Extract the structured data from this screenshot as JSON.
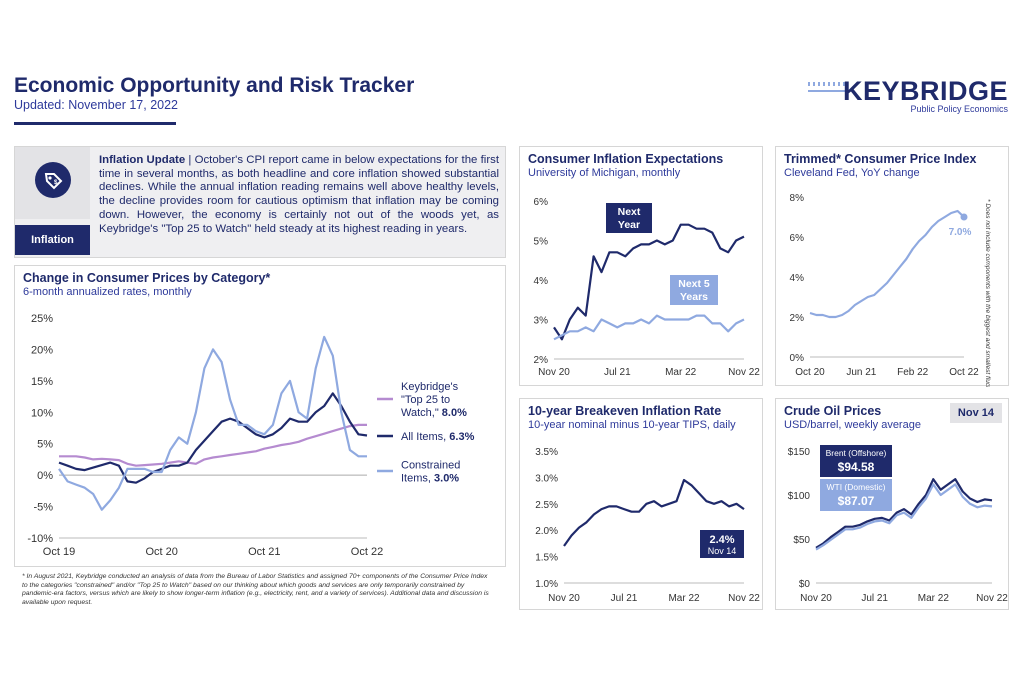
{
  "header": {
    "title": "Economic Opportunity and Risk Tracker",
    "updated": "Updated: November 17, 2022",
    "logo_word": "KEYBRIDGE",
    "logo_sub": "Public Policy Economics"
  },
  "inflation_update": {
    "label": "Inflation",
    "heading": "Inflation Update",
    "body": " | October's CPI report came in below expectations for the first time in several months, as both headline and core inflation showed substantial declines. While the annual inflation reading remains well above healthy levels, the decline provides room for cautious optimism that inflation may be coming down. However, the economy is certainly not out of the woods yet, as Keybridge's \"Top 25 to Watch\" held steady at its highest reading in years."
  },
  "footnote": "* In August 2021, Keybridge conducted an analysis of data from the Bureau of Labor Statistics and assigned 70+ components of the Consumer Price Index to the categories \"constrained\" and/or \"Top 25 to Watch\" based on our thinking about which goods and services are only temporarily constrained by pandemic-era factors, versus which are likely to show longer-term inflation (e.g., electricity, rent, and a variety of services). Additional data and discussion is available upon request.",
  "colors": {
    "navy": "#1f2a6b",
    "light_blue": "#8fa9e0",
    "purple": "#b58bd0",
    "zero_line": "#aaaaaa"
  },
  "chart_data": [
    {
      "id": "cpi-category",
      "type": "line",
      "title": "Change in Consumer Prices by Category*",
      "subtitle": "6-month annualized rates, monthly",
      "ylim": [
        -10,
        25
      ],
      "yticks": [
        "-10%",
        "-5%",
        "0%",
        "5%",
        "10%",
        "15%",
        "20%",
        "25%"
      ],
      "ytick_values": [
        -10,
        -5,
        0,
        5,
        10,
        15,
        20,
        25
      ],
      "xtick_labels": [
        "Oct 19",
        "Oct 20",
        "Oct 21",
        "Oct 22"
      ],
      "xtick_index": [
        0,
        12,
        24,
        36
      ],
      "series": [
        {
          "name": "Keybridge's \"Top 25 to Watch,\"",
          "value_label": "8.0%",
          "color": "#b58bd0",
          "values": [
            3,
            3,
            3,
            2.8,
            2.5,
            2.6,
            2.5,
            2.4,
            1.8,
            1.5,
            1.6,
            1.7,
            1.8,
            2,
            2.2,
            2,
            1.8,
            2.5,
            2.8,
            3,
            3.2,
            3.4,
            3.6,
            3.8,
            4.2,
            4.5,
            4.8,
            5,
            5.3,
            5.8,
            6.2,
            6.6,
            7,
            7.4,
            7.8,
            8,
            8
          ]
        },
        {
          "name": "All Items,",
          "value_label": "6.3%",
          "color": "#1f2a6b",
          "values": [
            2,
            1.5,
            1,
            0.8,
            1.2,
            1.6,
            2,
            1.5,
            -1,
            -1.2,
            -0.5,
            0.5,
            1,
            1.5,
            1.5,
            2,
            4,
            5.5,
            7,
            8.5,
            9,
            8.5,
            7.5,
            6.5,
            6,
            6.5,
            7.5,
            9,
            8.5,
            8.5,
            10,
            11,
            13,
            11,
            8.5,
            6.5,
            6.3
          ]
        },
        {
          "name": "Constrained Items,",
          "value_label": "3.0%",
          "color": "#8fa9e0",
          "values": [
            1,
            -1,
            -1.5,
            -2,
            -3,
            -5.5,
            -4,
            -2,
            1,
            1,
            1,
            0.5,
            0.5,
            4,
            6,
            5,
            10,
            17,
            20,
            18,
            12,
            8,
            8,
            7,
            6.5,
            8,
            13,
            15,
            10,
            9,
            17,
            22,
            19,
            10,
            4,
            3,
            3
          ]
        }
      ]
    },
    {
      "id": "inflation-expectations",
      "type": "line",
      "title": "Consumer Inflation Expectations",
      "subtitle": "University of Michigan, monthly",
      "ylim": [
        2,
        6
      ],
      "yticks": [
        "2%",
        "3%",
        "4%",
        "5%",
        "6%"
      ],
      "ytick_values": [
        2,
        3,
        4,
        5,
        6
      ],
      "xtick_labels": [
        "Nov 20",
        "Jul 21",
        "Mar 22",
        "Nov 22"
      ],
      "xtick_index": [
        0,
        8,
        16,
        24
      ],
      "series": [
        {
          "name": "Next Year",
          "color": "#1f2a6b",
          "values": [
            2.8,
            2.5,
            3.0,
            3.3,
            3.1,
            4.6,
            4.2,
            4.7,
            4.7,
            4.6,
            4.8,
            4.9,
            4.9,
            5.0,
            4.9,
            5.0,
            5.4,
            5.4,
            5.3,
            5.3,
            5.2,
            4.8,
            4.7,
            5.0,
            5.1
          ]
        },
        {
          "name": "Next 5 Years",
          "color": "#8fa9e0",
          "values": [
            2.5,
            2.6,
            2.7,
            2.7,
            2.8,
            2.7,
            3.0,
            2.9,
            2.8,
            2.9,
            2.9,
            3.0,
            2.9,
            3.1,
            3.0,
            3.0,
            3.0,
            3.0,
            3.1,
            3.1,
            2.9,
            2.9,
            2.7,
            2.9,
            3.0
          ]
        }
      ]
    },
    {
      "id": "trimmed-cpi",
      "type": "line",
      "title": "Trimmed* Consumer Price Index",
      "subtitle": "Cleveland Fed, YoY change",
      "note": "* Does not include components with the biggest and smallest fluctuations in prices each month",
      "ylim": [
        0,
        8
      ],
      "yticks": [
        "0%",
        "2%",
        "4%",
        "6%",
        "8%"
      ],
      "ytick_values": [
        0,
        2,
        4,
        6,
        8
      ],
      "xtick_labels": [
        "Oct 20",
        "Jun 21",
        "Feb 22",
        "Oct 22"
      ],
      "xtick_index": [
        0,
        8,
        16,
        24
      ],
      "series": [
        {
          "name": "Trimmed CPI",
          "value_label": "7.0%",
          "color": "#8fa9e0",
          "values": [
            2.2,
            2.1,
            2.1,
            2.0,
            2.0,
            2.1,
            2.3,
            2.6,
            2.8,
            3.0,
            3.1,
            3.4,
            3.7,
            4.1,
            4.5,
            4.9,
            5.4,
            5.8,
            6.1,
            6.5,
            6.8,
            7.0,
            7.2,
            7.3,
            7.0
          ]
        }
      ]
    },
    {
      "id": "breakeven-inflation",
      "type": "line",
      "title": "10-year Breakeven Inflation Rate",
      "subtitle": "10-year nominal minus 10-year TIPS, daily",
      "ylim": [
        1,
        3.5
      ],
      "yticks": [
        "1.0%",
        "1.5%",
        "2.0%",
        "2.5%",
        "3.0%",
        "3.5%"
      ],
      "ytick_values": [
        1,
        1.5,
        2,
        2.5,
        3,
        3.5
      ],
      "xtick_labels": [
        "Nov 20",
        "Jul 21",
        "Mar 22",
        "Nov 22"
      ],
      "xtick_index": [
        0,
        8,
        16,
        24
      ],
      "series": [
        {
          "name": "Breakeven",
          "value_label": "2.4%",
          "value_sublabel": "Nov 14",
          "color": "#1f2a6b",
          "values": [
            1.7,
            1.9,
            2.05,
            2.15,
            2.3,
            2.4,
            2.45,
            2.45,
            2.4,
            2.35,
            2.35,
            2.5,
            2.55,
            2.45,
            2.5,
            2.55,
            2.95,
            2.85,
            2.7,
            2.55,
            2.5,
            2.55,
            2.45,
            2.5,
            2.4
          ]
        }
      ]
    },
    {
      "id": "crude-oil",
      "type": "line",
      "title": "Crude Oil Prices",
      "subtitle": "USD/barrel, weekly average",
      "date_badge": "Nov 14",
      "ylim": [
        0,
        150
      ],
      "yticks": [
        "$0",
        "$50",
        "$100",
        "$150"
      ],
      "ytick_values": [
        0,
        50,
        100,
        150
      ],
      "xtick_labels": [
        "Nov 20",
        "Jul 21",
        "Mar 22",
        "Nov 22"
      ],
      "xtick_index": [
        0,
        8,
        16,
        24
      ],
      "series": [
        {
          "name": "Brent (Offshore)",
          "value_label": "$94.58",
          "color": "#1f2a6b",
          "values": [
            40,
            45,
            52,
            58,
            64,
            64,
            66,
            70,
            73,
            74,
            71,
            80,
            84,
            78,
            90,
            100,
            118,
            106,
            112,
            118,
            104,
            96,
            92,
            95,
            94
          ]
        },
        {
          "name": "WTI (Domestic)",
          "value_label": "$87.07",
          "color": "#8fa9e0",
          "values": [
            38,
            43,
            49,
            55,
            61,
            61,
            63,
            67,
            70,
            71,
            68,
            77,
            80,
            74,
            86,
            96,
            112,
            100,
            106,
            112,
            98,
            90,
            86,
            88,
            87
          ]
        }
      ]
    }
  ]
}
